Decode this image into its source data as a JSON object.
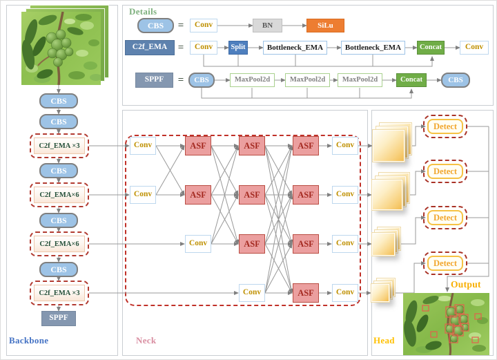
{
  "panels": {
    "details_title": "Details",
    "backbone_title": "Backbone",
    "neck_title": "Neck",
    "head_title": "Head"
  },
  "labels": {
    "cbs": "CBS",
    "conv": "Conv",
    "bn": "BN",
    "silu": "SiLu",
    "c2f_ema": "C2f_EMA",
    "split": "Split",
    "bottleneck_ema": "Bottleneck_EMA",
    "concat": "Concat",
    "sppf": "SPPF",
    "maxpool": "MaxPool2d",
    "asf": "ASF",
    "detect": "Detect",
    "equals": "="
  },
  "backbone": {
    "c2f_blocks": [
      {
        "label": "C2f_EMA ×3"
      },
      {
        "label": "C2f_EMA×6"
      },
      {
        "label": "C2f_EMA×6"
      },
      {
        "label": "C2f_EMA ×3"
      }
    ]
  },
  "head": {
    "output_label": "Output"
  },
  "colors": {
    "cbs_fill": "#9DC3E6",
    "concat_fill": "#70AD47",
    "silu_fill": "#ED7D31",
    "split_fill": "#4E7FBE",
    "c2f_lhs_fill": "#5E82AE",
    "sppf_fill": "#8497B0",
    "asf_fill": "#EB9F9F",
    "conv_text": "#BF9000",
    "dashed_red": "#B23A30",
    "detect_gold": "#F1A62E",
    "details_title_color": "#7EB07E",
    "backbone_title_color": "#4472C4",
    "neck_title_color": "#D98FA2",
    "head_title_color": "#FFC000"
  }
}
